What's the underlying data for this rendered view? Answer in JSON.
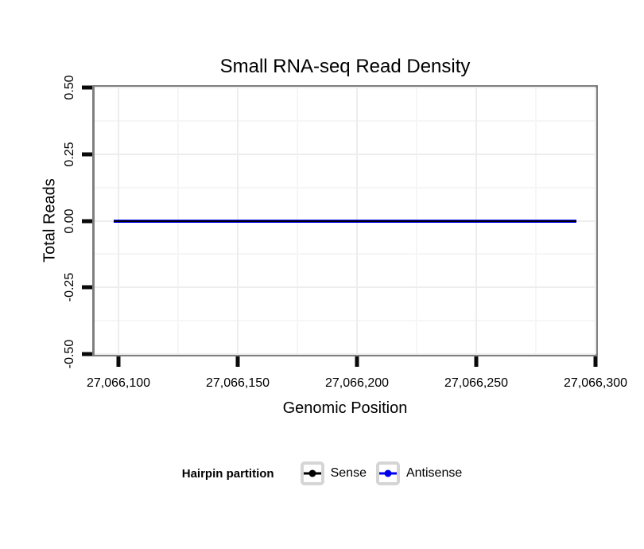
{
  "chart_data": {
    "type": "line",
    "title": "Small RNA-seq Read Density",
    "xlabel": "Genomic Position",
    "ylabel": "Total Reads",
    "xlim": [
      27066090,
      27066300
    ],
    "ylim": [
      -0.5,
      0.5
    ],
    "grid": true,
    "x_ticks": [
      {
        "value": 27066100,
        "label": "27,066,100"
      },
      {
        "value": 27066150,
        "label": "27,066,150"
      },
      {
        "value": 27066200,
        "label": "27,066,200"
      },
      {
        "value": 27066250,
        "label": "27,066,250"
      },
      {
        "value": 27066300,
        "label": "27,066,300"
      }
    ],
    "y_ticks": [
      {
        "value": 0.5,
        "label": "0.50"
      },
      {
        "value": 0.25,
        "label": "0.25"
      },
      {
        "value": 0.0,
        "label": "0.00"
      },
      {
        "value": -0.25,
        "label": "-0.25"
      },
      {
        "value": -0.5,
        "label": "-0.50"
      }
    ],
    "series": [
      {
        "name": "Sense",
        "color": "#000000",
        "x": [
          27066098,
          27066292
        ],
        "y": [
          0,
          0
        ]
      },
      {
        "name": "Antisense",
        "color": "#0000EE",
        "x": [
          27066098,
          27066292
        ],
        "y": [
          0,
          0
        ]
      }
    ],
    "legend": {
      "position": "bottom",
      "title": "Hairpin partition",
      "items": [
        {
          "label": "Sense",
          "color": "#000000"
        },
        {
          "label": "Antisense",
          "color": "#0000EE"
        }
      ]
    }
  },
  "colors": {
    "background": "#ffffff",
    "text": "#000000",
    "panel_border": "#7f7f7f",
    "tick": "#0a0a0a",
    "grid_major": "#ededed",
    "grid_minor": "#f6f6f6",
    "legend_key_border": "#d5d5d5"
  }
}
